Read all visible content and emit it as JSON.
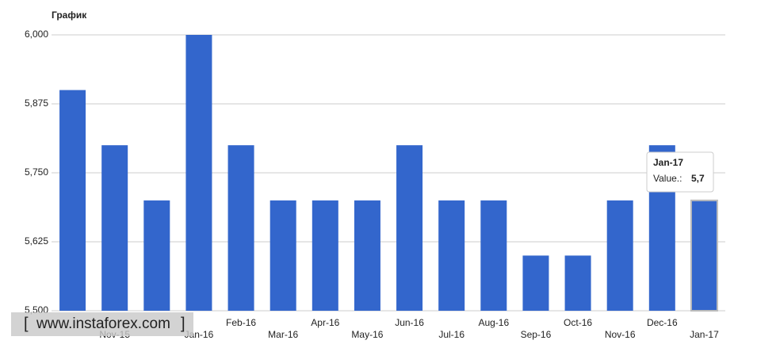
{
  "chart_data": {
    "type": "bar",
    "title": "График",
    "categories": [
      null,
      "Nov-15",
      null,
      "Jan-16",
      "Feb-16",
      "Mar-16",
      "Apr-16",
      "May-16",
      "Jun-16",
      "Jul-16",
      "Aug-16",
      "Sep-16",
      "Oct-16",
      "Nov-16",
      "Dec-16",
      "Jan-17"
    ],
    "values": [
      5.9,
      5.8,
      5.7,
      6.0,
      5.8,
      5.7,
      5.7,
      5.7,
      5.8,
      5.7,
      5.7,
      5.6,
      5.6,
      5.7,
      5.8,
      5.7
    ],
    "color": "#3366cc",
    "ylim": [
      5.5,
      6.0
    ],
    "yticks": [
      {
        "value": 5.5,
        "label": "5,500"
      },
      {
        "value": 5.625,
        "label": "5,625"
      },
      {
        "value": 5.75,
        "label": "5,750"
      },
      {
        "value": 5.875,
        "label": "5,875"
      },
      {
        "value": 6.0,
        "label": "6,000"
      }
    ],
    "grid": true,
    "tooltip": {
      "title": "Jan-17",
      "label": "Value.:",
      "value": "5,7"
    }
  },
  "watermark": {
    "open": "[",
    "text": "www.instaforex.com",
    "close": "]"
  }
}
